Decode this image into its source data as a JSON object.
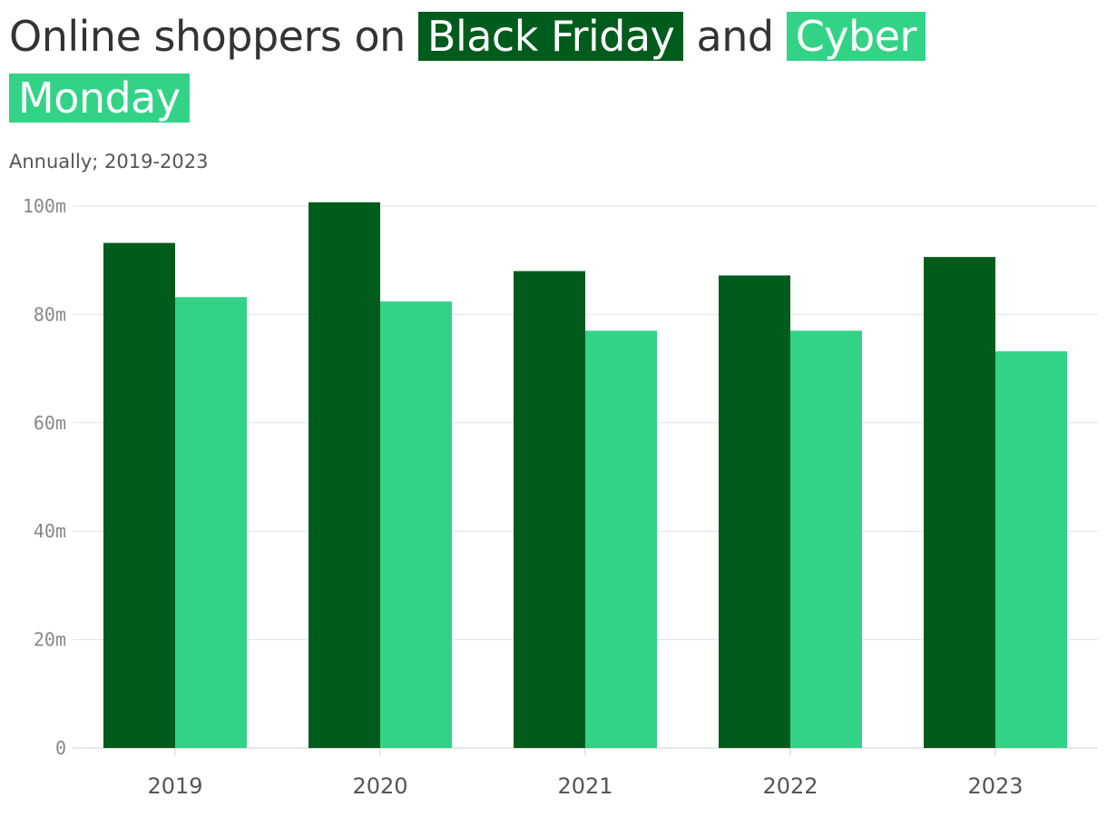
{
  "header": {
    "title_prefix": "Online shoppers on",
    "title_series_1": "Black Friday",
    "title_middle": "and",
    "title_series_2": "Cyber Monday",
    "subtitle": "Annually; 2019-2023"
  },
  "colors": {
    "black_friday": "#005c1c",
    "cyber_monday": "#33d387",
    "grid": "#e2e2e2",
    "axis": "#cccccc"
  },
  "chart_data": {
    "type": "bar",
    "title": "Online shoppers on Black Friday and Cyber Monday",
    "subtitle": "Annually; 2019-2023",
    "categories": [
      "2019",
      "2020",
      "2021",
      "2022",
      "2023"
    ],
    "series": [
      {
        "name": "Black Friday",
        "values": [
          93.2,
          100.7,
          88.0,
          87.2,
          90.6
        ]
      },
      {
        "name": "Cyber Monday",
        "values": [
          83.2,
          82.4,
          77.0,
          77.0,
          73.2
        ]
      }
    ],
    "ylim": [
      0,
      100
    ],
    "yticks": [
      0,
      20,
      40,
      60,
      80,
      100
    ],
    "ytick_labels": [
      "0",
      "20m",
      "40m",
      "60m",
      "80m",
      "100m"
    ],
    "grid": true,
    "legend": "title"
  }
}
